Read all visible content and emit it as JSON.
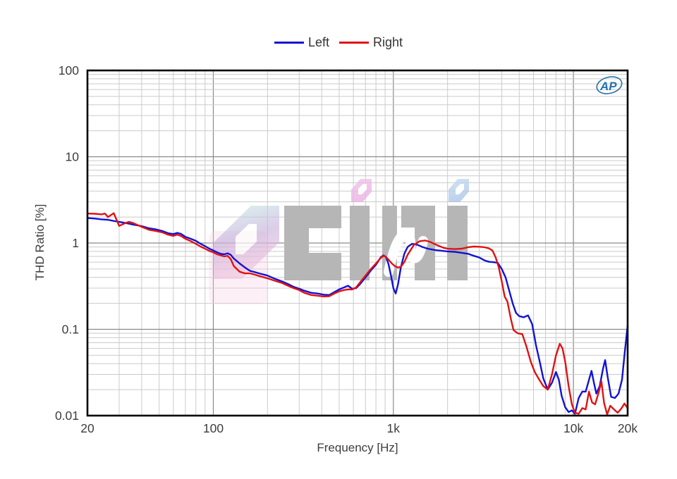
{
  "branding": {
    "ap_logo_text": "AP"
  },
  "watermark": {
    "letters": [
      "0",
      "C",
      "I",
      "И",
      "I"
    ],
    "gray": "#b6b6b6"
  },
  "chart_data": {
    "type": "line",
    "title": "",
    "xlabel": "Frequency [Hz]",
    "ylabel": "THD Ratio [%]",
    "x_scale": "log",
    "y_scale": "log",
    "xlim": [
      20,
      20000
    ],
    "ylim": [
      0.01,
      100
    ],
    "grid": "log major+minor, both axes",
    "legend_position": "top-center",
    "x_ticks": [
      {
        "v": 20,
        "label": "20"
      },
      {
        "v": 100,
        "label": "100"
      },
      {
        "v": 1000,
        "label": "1k"
      },
      {
        "v": 10000,
        "label": "10k"
      },
      {
        "v": 20000,
        "label": "20k"
      }
    ],
    "y_ticks": [
      {
        "v": 100,
        "label": "100"
      },
      {
        "v": 10,
        "label": "10"
      },
      {
        "v": 1,
        "label": "1"
      },
      {
        "v": 0.1,
        "label": "0.1"
      },
      {
        "v": 0.01,
        "label": "0.01"
      }
    ],
    "series": [
      {
        "name": "Left",
        "color": "#1212d6",
        "points": [
          [
            20,
            1.95
          ],
          [
            22,
            1.92
          ],
          [
            24,
            1.88
          ],
          [
            26,
            1.86
          ],
          [
            28,
            1.8
          ],
          [
            30,
            1.76
          ],
          [
            33,
            1.7
          ],
          [
            36,
            1.63
          ],
          [
            40,
            1.57
          ],
          [
            44,
            1.48
          ],
          [
            48,
            1.44
          ],
          [
            52,
            1.38
          ],
          [
            56,
            1.3
          ],
          [
            60,
            1.27
          ],
          [
            63,
            1.31
          ],
          [
            66,
            1.28
          ],
          [
            70,
            1.18
          ],
          [
            75,
            1.12
          ],
          [
            80,
            1.06
          ],
          [
            85,
            0.98
          ],
          [
            90,
            0.92
          ],
          [
            95,
            0.86
          ],
          [
            100,
            0.82
          ],
          [
            105,
            0.78
          ],
          [
            110,
            0.75
          ],
          [
            115,
            0.74
          ],
          [
            120,
            0.76
          ],
          [
            125,
            0.73
          ],
          [
            130,
            0.66
          ],
          [
            140,
            0.58
          ],
          [
            150,
            0.52
          ],
          [
            160,
            0.475
          ],
          [
            170,
            0.46
          ],
          [
            180,
            0.445
          ],
          [
            200,
            0.42
          ],
          [
            220,
            0.385
          ],
          [
            240,
            0.36
          ],
          [
            260,
            0.335
          ],
          [
            280,
            0.31
          ],
          [
            300,
            0.295
          ],
          [
            320,
            0.28
          ],
          [
            350,
            0.265
          ],
          [
            380,
            0.26
          ],
          [
            410,
            0.252
          ],
          [
            440,
            0.25
          ],
          [
            470,
            0.27
          ],
          [
            500,
            0.29
          ],
          [
            530,
            0.305
          ],
          [
            560,
            0.32
          ],
          [
            590,
            0.295
          ],
          [
            620,
            0.3
          ],
          [
            650,
            0.33
          ],
          [
            700,
            0.4
          ],
          [
            750,
            0.48
          ],
          [
            800,
            0.56
          ],
          [
            850,
            0.68
          ],
          [
            880,
            0.72
          ],
          [
            910,
            0.69
          ],
          [
            940,
            0.57
          ],
          [
            970,
            0.42
          ],
          [
            1000,
            0.3
          ],
          [
            1030,
            0.26
          ],
          [
            1060,
            0.33
          ],
          [
            1100,
            0.52
          ],
          [
            1150,
            0.75
          ],
          [
            1200,
            0.9
          ],
          [
            1270,
            0.98
          ],
          [
            1350,
            0.96
          ],
          [
            1450,
            0.9
          ],
          [
            1550,
            0.86
          ],
          [
            1700,
            0.83
          ],
          [
            1850,
            0.815
          ],
          [
            2000,
            0.8
          ],
          [
            2200,
            0.79
          ],
          [
            2400,
            0.77
          ],
          [
            2600,
            0.75
          ],
          [
            2800,
            0.71
          ],
          [
            3000,
            0.68
          ],
          [
            3200,
            0.63
          ],
          [
            3400,
            0.605
          ],
          [
            3600,
            0.6
          ],
          [
            3800,
            0.59
          ],
          [
            4000,
            0.5
          ],
          [
            4200,
            0.4
          ],
          [
            4400,
            0.28
          ],
          [
            4600,
            0.2
          ],
          [
            4800,
            0.155
          ],
          [
            5000,
            0.142
          ],
          [
            5300,
            0.138
          ],
          [
            5600,
            0.145
          ],
          [
            5900,
            0.115
          ],
          [
            6200,
            0.065
          ],
          [
            6500,
            0.042
          ],
          [
            6800,
            0.027
          ],
          [
            7200,
            0.02
          ],
          [
            7600,
            0.024
          ],
          [
            8000,
            0.032
          ],
          [
            8300,
            0.026
          ],
          [
            8600,
            0.017
          ],
          [
            9000,
            0.0125
          ],
          [
            9400,
            0.011
          ],
          [
            9800,
            0.0115
          ],
          [
            10200,
            0.0105
          ],
          [
            10700,
            0.016
          ],
          [
            11200,
            0.019
          ],
          [
            11700,
            0.019
          ],
          [
            12200,
            0.026
          ],
          [
            12600,
            0.033
          ],
          [
            13000,
            0.024
          ],
          [
            13400,
            0.018
          ],
          [
            14000,
            0.022
          ],
          [
            14600,
            0.035
          ],
          [
            15000,
            0.044
          ],
          [
            15500,
            0.028
          ],
          [
            16200,
            0.0165
          ],
          [
            17000,
            0.016
          ],
          [
            17800,
            0.018
          ],
          [
            18600,
            0.026
          ],
          [
            19300,
            0.055
          ],
          [
            20000,
            0.11
          ]
        ]
      },
      {
        "name": "Right",
        "color": "#e01212",
        "points": [
          [
            20,
            2.2
          ],
          [
            22,
            2.18
          ],
          [
            24,
            2.15
          ],
          [
            25,
            2.2
          ],
          [
            26,
            2.0
          ],
          [
            28,
            2.22
          ],
          [
            30,
            1.58
          ],
          [
            32,
            1.68
          ],
          [
            34,
            1.76
          ],
          [
            36,
            1.7
          ],
          [
            40,
            1.54
          ],
          [
            44,
            1.42
          ],
          [
            48,
            1.38
          ],
          [
            52,
            1.33
          ],
          [
            56,
            1.25
          ],
          [
            60,
            1.21
          ],
          [
            63,
            1.25
          ],
          [
            66,
            1.21
          ],
          [
            70,
            1.12
          ],
          [
            75,
            1.05
          ],
          [
            80,
            0.98
          ],
          [
            85,
            0.91
          ],
          [
            90,
            0.86
          ],
          [
            95,
            0.81
          ],
          [
            100,
            0.78
          ],
          [
            105,
            0.74
          ],
          [
            110,
            0.72
          ],
          [
            115,
            0.7
          ],
          [
            120,
            0.71
          ],
          [
            125,
            0.65
          ],
          [
            130,
            0.54
          ],
          [
            140,
            0.465
          ],
          [
            150,
            0.445
          ],
          [
            160,
            0.445
          ],
          [
            170,
            0.43
          ],
          [
            180,
            0.415
          ],
          [
            200,
            0.39
          ],
          [
            220,
            0.365
          ],
          [
            240,
            0.345
          ],
          [
            260,
            0.32
          ],
          [
            280,
            0.3
          ],
          [
            300,
            0.285
          ],
          [
            320,
            0.265
          ],
          [
            350,
            0.25
          ],
          [
            380,
            0.245
          ],
          [
            410,
            0.24
          ],
          [
            440,
            0.242
          ],
          [
            470,
            0.26
          ],
          [
            500,
            0.275
          ],
          [
            530,
            0.285
          ],
          [
            560,
            0.29
          ],
          [
            590,
            0.29
          ],
          [
            620,
            0.305
          ],
          [
            650,
            0.345
          ],
          [
            700,
            0.42
          ],
          [
            750,
            0.5
          ],
          [
            800,
            0.58
          ],
          [
            850,
            0.67
          ],
          [
            880,
            0.71
          ],
          [
            910,
            0.69
          ],
          [
            940,
            0.64
          ],
          [
            980,
            0.58
          ],
          [
            1020,
            0.54
          ],
          [
            1060,
            0.52
          ],
          [
            1100,
            0.53
          ],
          [
            1150,
            0.6
          ],
          [
            1200,
            0.73
          ],
          [
            1300,
            0.95
          ],
          [
            1400,
            1.05
          ],
          [
            1500,
            1.07
          ],
          [
            1600,
            1.03
          ],
          [
            1700,
            0.97
          ],
          [
            1800,
            0.92
          ],
          [
            1900,
            0.88
          ],
          [
            2000,
            0.86
          ],
          [
            2200,
            0.85
          ],
          [
            2400,
            0.86
          ],
          [
            2600,
            0.895
          ],
          [
            2800,
            0.91
          ],
          [
            3000,
            0.905
          ],
          [
            3200,
            0.895
          ],
          [
            3400,
            0.865
          ],
          [
            3550,
            0.82
          ],
          [
            3700,
            0.68
          ],
          [
            3850,
            0.52
          ],
          [
            4000,
            0.36
          ],
          [
            4150,
            0.24
          ],
          [
            4300,
            0.21
          ],
          [
            4500,
            0.13
          ],
          [
            4650,
            0.098
          ],
          [
            4900,
            0.09
          ],
          [
            5200,
            0.088
          ],
          [
            5500,
            0.062
          ],
          [
            5800,
            0.042
          ],
          [
            6100,
            0.032
          ],
          [
            6400,
            0.027
          ],
          [
            6800,
            0.022
          ],
          [
            7200,
            0.02
          ],
          [
            7600,
            0.03
          ],
          [
            8000,
            0.05
          ],
          [
            8400,
            0.068
          ],
          [
            8700,
            0.06
          ],
          [
            9000,
            0.042
          ],
          [
            9400,
            0.022
          ],
          [
            9800,
            0.0135
          ],
          [
            10200,
            0.0108
          ],
          [
            10700,
            0.0105
          ],
          [
            11200,
            0.0122
          ],
          [
            11700,
            0.0118
          ],
          [
            12200,
            0.019
          ],
          [
            12700,
            0.0142
          ],
          [
            13200,
            0.0135
          ],
          [
            13800,
            0.0185
          ],
          [
            14300,
            0.025
          ],
          [
            14800,
            0.014
          ],
          [
            15400,
            0.0103
          ],
          [
            16000,
            0.013
          ],
          [
            16800,
            0.0118
          ],
          [
            17600,
            0.0108
          ],
          [
            18400,
            0.012
          ],
          [
            19200,
            0.0138
          ],
          [
            20000,
            0.0122
          ]
        ]
      }
    ]
  }
}
